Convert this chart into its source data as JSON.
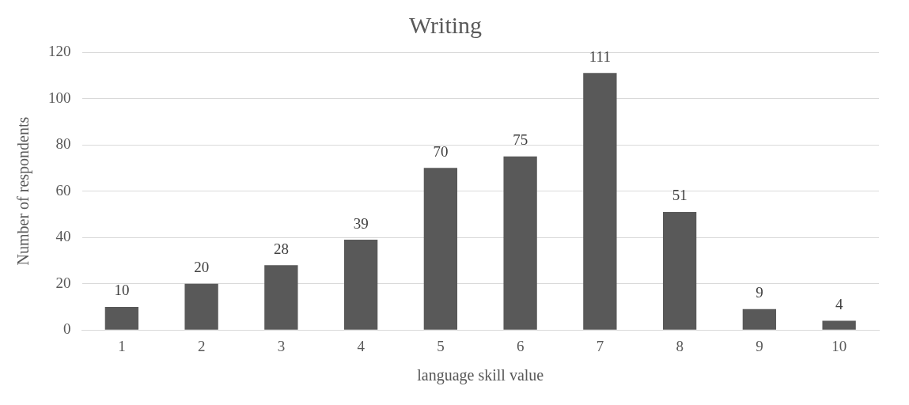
{
  "chart_data": {
    "type": "bar",
    "title": "Writing",
    "xlabel": "language skill value",
    "ylabel": "Number of respondents",
    "categories": [
      "1",
      "2",
      "3",
      "4",
      "5",
      "6",
      "7",
      "8",
      "9",
      "10"
    ],
    "values": [
      10,
      20,
      28,
      39,
      70,
      75,
      111,
      51,
      9,
      4
    ],
    "color": "#595959",
    "ylim": [
      0,
      120
    ],
    "yticks": [
      0,
      20,
      40,
      60,
      80,
      100,
      120
    ],
    "grid": "y",
    "data_labels": true
  }
}
